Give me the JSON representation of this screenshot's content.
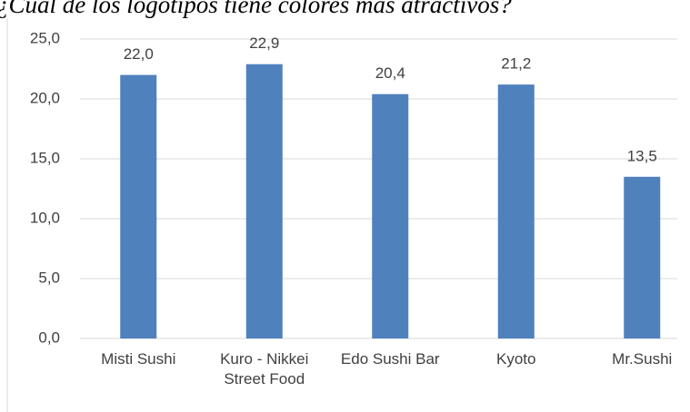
{
  "chart_data": {
    "type": "bar",
    "title": "¿Cuál de los logotipos tiene colores más atractivos?",
    "categories": [
      "Misti Sushi",
      "Kuro - Nikkei Street Food",
      "Edo Sushi Bar",
      "Kyoto",
      "Mr.Sushi"
    ],
    "values": [
      22.0,
      22.9,
      20.4,
      21.2,
      13.5
    ],
    "value_labels": [
      "22,0",
      "22,9",
      "20,4",
      "21,2",
      "13,5"
    ],
    "color": "#4f81bd",
    "ylim": [
      0,
      25
    ],
    "yticks": [
      {
        "value": 0,
        "label": "0,0"
      },
      {
        "value": 5,
        "label": "5,0"
      },
      {
        "value": 10,
        "label": "10,0"
      },
      {
        "value": 15,
        "label": "15,0"
      },
      {
        "value": 20,
        "label": "20,0"
      },
      {
        "value": 25,
        "label": "25,0"
      }
    ],
    "grid": true
  }
}
